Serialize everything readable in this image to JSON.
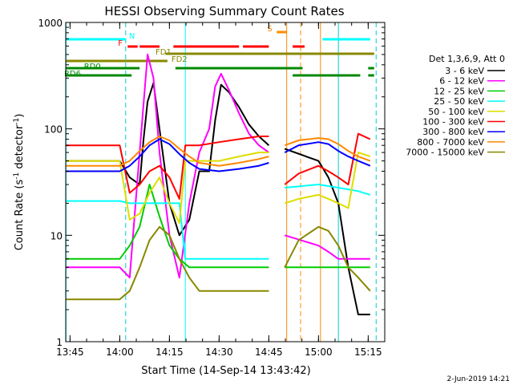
{
  "chart_data": {
    "type": "line",
    "title": "HESSI Observing Summary Count Rates",
    "xlabel": "Start Time (14-Sep-14 13:43:42)",
    "ylabel": "Count Rate (s⁻¹ detector⁻¹)",
    "ylabel_main": "Count Rate (s",
    "ylabel_sup1": "-1",
    "ylabel_mid": " detector",
    "ylabel_sup2": "-1",
    "ylabel_end": ")",
    "yscale": "log",
    "ylim": [
      1,
      1000
    ],
    "xlim": [
      13.7283,
      15.3333
    ],
    "xtick_labels": [
      "13:45",
      "14:00",
      "14:15",
      "14:30",
      "14:45",
      "15:00",
      "15:15"
    ],
    "xticks": [
      13.75,
      14.0,
      14.25,
      14.5,
      14.75,
      15.0,
      15.25
    ],
    "ytick_labels": [
      "1",
      "10",
      "100",
      "1000"
    ],
    "yticks": [
      1,
      10,
      100,
      1000
    ],
    "grid": false,
    "legend_position": "right",
    "legend_title": "Det 1,3,6,9, Att 0",
    "date_stamp": "2-Jun-2019 14:21",
    "series": [
      {
        "name": "3 - 6 keV",
        "color": "#000000",
        "x": [
          13.72,
          14.0,
          14.05,
          14.1,
          14.12,
          14.14,
          14.17,
          14.2,
          14.25,
          14.3,
          14.35,
          14.4,
          14.45,
          14.48,
          14.51,
          14.55,
          14.6,
          14.65,
          14.7,
          14.75,
          14.8,
          14.83,
          15.0,
          15.05,
          15.1,
          15.15,
          15.2,
          15.26
        ],
        "y": [
          50,
          50,
          35,
          30,
          80,
          180,
          270,
          100,
          20,
          10,
          14,
          40,
          40,
          120,
          260,
          220,
          160,
          110,
          85,
          70,
          null,
          65,
          50,
          35,
          20,
          5,
          1.8,
          1.8
        ]
      },
      {
        "name": "6 - 12 keV",
        "color": "#ff00ff",
        "x": [
          13.72,
          14.0,
          14.05,
          14.1,
          14.14,
          14.17,
          14.2,
          14.25,
          14.3,
          14.35,
          14.4,
          14.45,
          14.48,
          14.51,
          14.55,
          14.6,
          14.65,
          14.7,
          14.75,
          14.8,
          14.83,
          15.0,
          15.05,
          15.1,
          15.15,
          15.2,
          15.26
        ],
        "y": [
          5,
          5,
          4,
          60,
          500,
          300,
          60,
          10,
          4,
          20,
          60,
          100,
          250,
          330,
          230,
          140,
          90,
          70,
          60,
          null,
          10,
          8,
          7,
          6,
          6,
          6,
          6
        ]
      },
      {
        "name": "12 - 25 keV",
        "color": "#00cc00",
        "x": [
          13.72,
          14.0,
          14.05,
          14.1,
          14.15,
          14.2,
          14.25,
          14.3,
          14.35,
          14.4,
          14.45,
          14.5,
          14.55,
          14.6,
          14.65,
          14.7,
          14.75,
          14.8,
          14.83,
          15.0,
          15.1,
          15.2,
          15.26
        ],
        "y": [
          6,
          6,
          8,
          12,
          30,
          15,
          8,
          6,
          5,
          5,
          5,
          5,
          5,
          5,
          5,
          5,
          5,
          null,
          5,
          5,
          5,
          5,
          5
        ]
      },
      {
        "name": "25 - 50 keV",
        "color": "#00ffff",
        "x": [
          13.72,
          14.0,
          14.05,
          14.1,
          14.15,
          14.2,
          14.25,
          14.3,
          14.33,
          14.4,
          14.5,
          14.6,
          14.7,
          14.75,
          14.8,
          14.83,
          15.0,
          15.1,
          15.2,
          15.26
        ],
        "y": [
          21,
          21,
          20,
          20,
          20,
          20,
          20,
          20,
          6,
          6,
          6,
          6,
          6,
          6,
          null,
          28,
          30,
          28,
          26,
          24
        ]
      },
      {
        "name": "50 - 100 keV",
        "color": "#dddd00",
        "x": [
          13.72,
          14.0,
          14.05,
          14.1,
          14.15,
          14.2,
          14.25,
          14.3,
          14.33,
          14.4,
          14.5,
          14.6,
          14.7,
          14.75,
          14.8,
          14.83,
          14.9,
          15.0,
          15.05,
          15.1,
          15.15,
          15.2,
          15.26
        ],
        "y": [
          50,
          50,
          14,
          16,
          25,
          35,
          20,
          13,
          50,
          50,
          50,
          55,
          60,
          60,
          null,
          20,
          22,
          24,
          22,
          20,
          18,
          60,
          55
        ]
      },
      {
        "name": "100 - 300 keV",
        "color": "#ff0000",
        "x": [
          13.72,
          14.0,
          14.05,
          14.1,
          14.15,
          14.2,
          14.25,
          14.3,
          14.33,
          14.4,
          14.5,
          14.6,
          14.7,
          14.75,
          14.8,
          14.83,
          14.9,
          15.0,
          15.05,
          15.1,
          15.15,
          15.2,
          15.26
        ],
        "y": [
          70,
          70,
          25,
          30,
          40,
          45,
          35,
          22,
          70,
          70,
          75,
          80,
          85,
          85,
          null,
          30,
          38,
          45,
          40,
          35,
          30,
          90,
          80
        ]
      },
      {
        "name": "300 - 800 keV",
        "color": "#0000ff",
        "x": [
          13.72,
          14.0,
          14.05,
          14.1,
          14.15,
          14.2,
          14.25,
          14.3,
          14.35,
          14.4,
          14.5,
          14.6,
          14.7,
          14.75,
          14.8,
          14.83,
          14.9,
          15.0,
          15.05,
          15.1,
          15.15,
          15.2,
          15.26
        ],
        "y": [
          40,
          40,
          45,
          55,
          70,
          80,
          72,
          58,
          48,
          42,
          40,
          42,
          45,
          48,
          null,
          60,
          70,
          75,
          72,
          62,
          55,
          50,
          45
        ]
      },
      {
        "name": "800 - 7000 keV",
        "color": "#ff8800",
        "x": [
          13.72,
          14.0,
          14.05,
          14.1,
          14.15,
          14.2,
          14.25,
          14.3,
          14.35,
          14.4,
          14.5,
          14.6,
          14.7,
          14.75,
          14.8,
          14.83,
          14.9,
          15.0,
          15.05,
          15.1,
          15.15,
          15.2,
          15.26
        ],
        "y": [
          45,
          45,
          50,
          62,
          75,
          85,
          78,
          65,
          55,
          48,
          45,
          48,
          52,
          55,
          null,
          70,
          78,
          82,
          80,
          72,
          62,
          55,
          50
        ]
      },
      {
        "name": "7000 - 15000 keV",
        "color": "#888800",
        "x": [
          13.72,
          14.0,
          14.05,
          14.1,
          14.15,
          14.2,
          14.25,
          14.3,
          14.35,
          14.4,
          14.5,
          14.6,
          14.7,
          14.75,
          14.8,
          14.83,
          14.9,
          15.0,
          15.05,
          15.1,
          15.15,
          15.2,
          15.26
        ],
        "y": [
          2.5,
          2.5,
          3,
          5,
          9,
          12,
          10,
          6,
          4,
          3,
          3,
          3,
          3,
          3,
          null,
          5,
          9,
          12,
          11,
          8,
          5,
          4,
          3
        ]
      }
    ],
    "flag_bars": [
      {
        "label": "N",
        "color": "#00ffff",
        "row": 0,
        "segments": [
          [
            13.73,
            14.03
          ],
          [
            15.02,
            15.26
          ]
        ]
      },
      {
        "label": "S",
        "color": "#ff8800",
        "row": -1,
        "segments": [
          [
            14.79,
            14.84
          ]
        ]
      },
      {
        "label": "F",
        "color": "#ff0000",
        "row": 1,
        "segments": [
          [
            14.04,
            14.09
          ],
          [
            14.1,
            14.2
          ],
          [
            14.27,
            14.6
          ],
          [
            14.62,
            14.75
          ],
          [
            14.87,
            14.93
          ]
        ]
      },
      {
        "label": "FD1",
        "color": "#888800",
        "row": 2,
        "segments": [
          [
            14.23,
            15.28
          ]
        ]
      },
      {
        "label": "FD2",
        "color": "#888800",
        "row": 3,
        "segments": [
          [
            13.73,
            14.24
          ]
        ]
      },
      {
        "label": "RD0",
        "color": "#008800",
        "row": 4,
        "segments": [
          [
            13.73,
            14.1
          ],
          [
            14.28,
            14.92
          ],
          [
            15.25,
            15.28
          ]
        ]
      },
      {
        "label": "RD6",
        "color": "#008800",
        "row": 5,
        "segments": [
          [
            13.73,
            14.06
          ],
          [
            14.87,
            15.21
          ],
          [
            15.25,
            15.28
          ]
        ]
      }
    ],
    "vlines": [
      {
        "x": 14.03,
        "color": "#00cccc",
        "style": "dashed"
      },
      {
        "x": 14.84,
        "color": "#ff8800",
        "style": "solid"
      },
      {
        "x": 14.91,
        "color": "#ff8800",
        "style": "dashed"
      },
      {
        "x": 15.01,
        "color": "#ff8800",
        "style": "solid"
      },
      {
        "x": 15.1,
        "color": "#00cccc",
        "style": "solid"
      },
      {
        "x": 15.29,
        "color": "#00cccc",
        "style": "dashed"
      },
      {
        "x": 14.33,
        "color": "#00ffff",
        "style": "solid"
      },
      {
        "x": 13.73,
        "color": "#00ffff",
        "style": "solid"
      }
    ]
  }
}
